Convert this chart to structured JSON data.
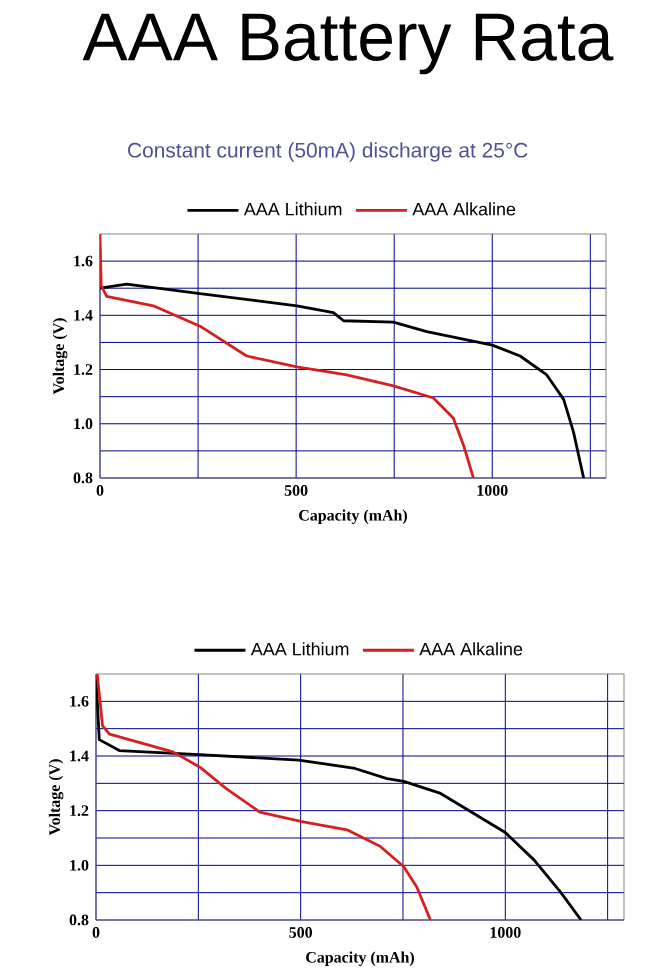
{
  "chart_data": [
    {
      "type": "line",
      "title": "AAA Battery Rata",
      "subtitle": "Constant current (50mA) discharge at 25°C",
      "xlabel": "Capacity (mAh)",
      "ylabel": "Voltage (V)",
      "xlim": [
        0,
        1290
      ],
      "ylim": [
        0.8,
        1.7
      ],
      "xticks": [
        0,
        {
          "value": 250,
          "label": null
        },
        500,
        {
          "value": 750,
          "label": null
        },
        1000,
        {
          "value": 1250,
          "label": null
        }
      ],
      "yticks": [
        0.8,
        {
          "value": 0.9,
          "label": null
        },
        {
          "value": 1.0,
          "label": "1.0"
        },
        {
          "value": 1.1,
          "label": null
        },
        1.2,
        {
          "value": 1.3,
          "label": null
        },
        1.4,
        {
          "value": 1.5,
          "label": null
        },
        1.6
      ],
      "grid": true,
      "legend": "top",
      "series": [
        {
          "name": "AAA Lithium",
          "color": "#000000",
          "x": [
            0,
            68,
            255,
            502,
            595,
            621,
            748,
            833,
            1000,
            1071,
            1139,
            1182,
            1207,
            1233
          ],
          "values": [
            1.5,
            1.515,
            1.48,
            1.435,
            1.41,
            1.38,
            1.375,
            1.34,
            1.29,
            1.25,
            1.18,
            1.09,
            0.97,
            0.8
          ]
        },
        {
          "name": "AAA Alkaline",
          "color": "#d42020",
          "x": [
            0,
            3,
            17,
            136,
            255,
            374,
            502,
            629,
            748,
            850,
            901,
            927,
            952
          ],
          "values": [
            1.7,
            1.51,
            1.47,
            1.435,
            1.36,
            1.25,
            1.21,
            1.18,
            1.14,
            1.095,
            1.02,
            0.92,
            0.8
          ]
        }
      ]
    },
    {
      "type": "line",
      "xlabel": "Capacity (mAh)",
      "ylabel": "Voltage (V)",
      "xlim": [
        0,
        1290
      ],
      "ylim": [
        0.8,
        1.7
      ],
      "xticks": [
        0,
        {
          "value": 250,
          "label": null
        },
        500,
        {
          "value": 750,
          "label": null
        },
        1000,
        {
          "value": 1250,
          "label": null
        }
      ],
      "yticks": [
        0.8,
        {
          "value": 0.9,
          "label": null
        },
        {
          "value": 1.0,
          "label": "1.0"
        },
        {
          "value": 1.1,
          "label": null
        },
        1.2,
        {
          "value": 1.3,
          "label": null
        },
        1.4,
        {
          "value": 1.5,
          "label": null
        },
        1.6
      ],
      "grid": true,
      "legend": "top",
      "series": [
        {
          "name": "AAA Lithium",
          "color": "#000000",
          "x": [
            0,
            8,
            57,
            253,
            495,
            629,
            711,
            752,
            842,
            1000,
            1070,
            1136,
            1185
          ],
          "values": [
            1.69,
            1.46,
            1.42,
            1.405,
            1.385,
            1.356,
            1.317,
            1.307,
            1.263,
            1.12,
            1.02,
            0.9,
            0.8
          ]
        },
        {
          "name": "AAA Alkaline",
          "color": "#d42020",
          "x": [
            3,
            16,
            33,
            188,
            253,
            319,
            400,
            503,
            613,
            694,
            752,
            784,
            817
          ],
          "values": [
            1.7,
            1.51,
            1.48,
            1.415,
            1.36,
            1.28,
            1.195,
            1.16,
            1.13,
            1.07,
            0.995,
            0.92,
            0.8
          ]
        }
      ]
    }
  ]
}
